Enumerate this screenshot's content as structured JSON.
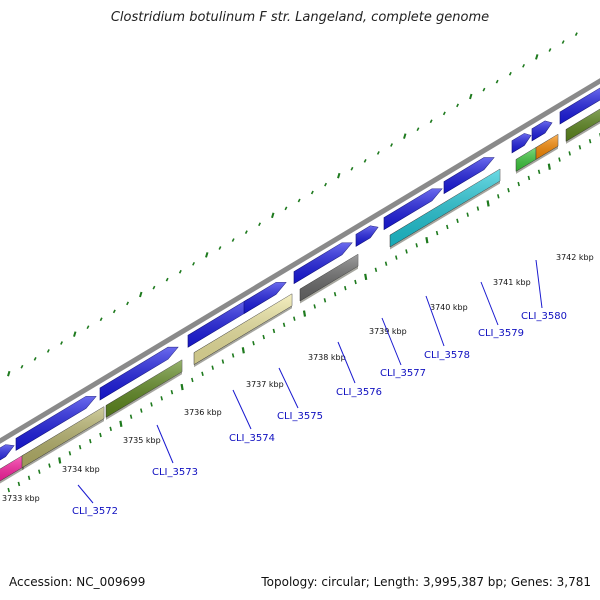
{
  "title": "Clostridium botulinum F str. Langeland, complete genome",
  "footer": {
    "accession": "Accession: NC_009699",
    "topology": "Topology: circular; Length: 3,995,387 bp; Genes: 3,781"
  },
  "colors": {
    "backbone": "#8a8a8a",
    "forward_gene": "#1a1ae6",
    "tick": "#1e7a1e",
    "gene_label": "#1010c0",
    "leader_line": "#1a1ad0"
  },
  "scale_labels": [
    "3733 kbp",
    "3734 kbp",
    "3735 kbp",
    "3736 kbp",
    "3737 kbp",
    "3738 kbp",
    "3739 kbp",
    "3740 kbp",
    "3741 kbp",
    "3742 kbp"
  ],
  "gene_labels": [
    "CLI_3572",
    "CLI_3573",
    "CLI_3574",
    "CLI_3575",
    "CLI_3576",
    "CLI_3577",
    "CLI_3578",
    "CLI_3579",
    "CLI_3580"
  ],
  "cog_colors": [
    "#ff1aa0",
    "#b8b46a",
    "#5f8a1e",
    "#f0e8a0",
    "#6a6a6a",
    "#1ec8d8",
    "#3ccc3c",
    "#ff8c00",
    "#5f8a1e"
  ]
}
